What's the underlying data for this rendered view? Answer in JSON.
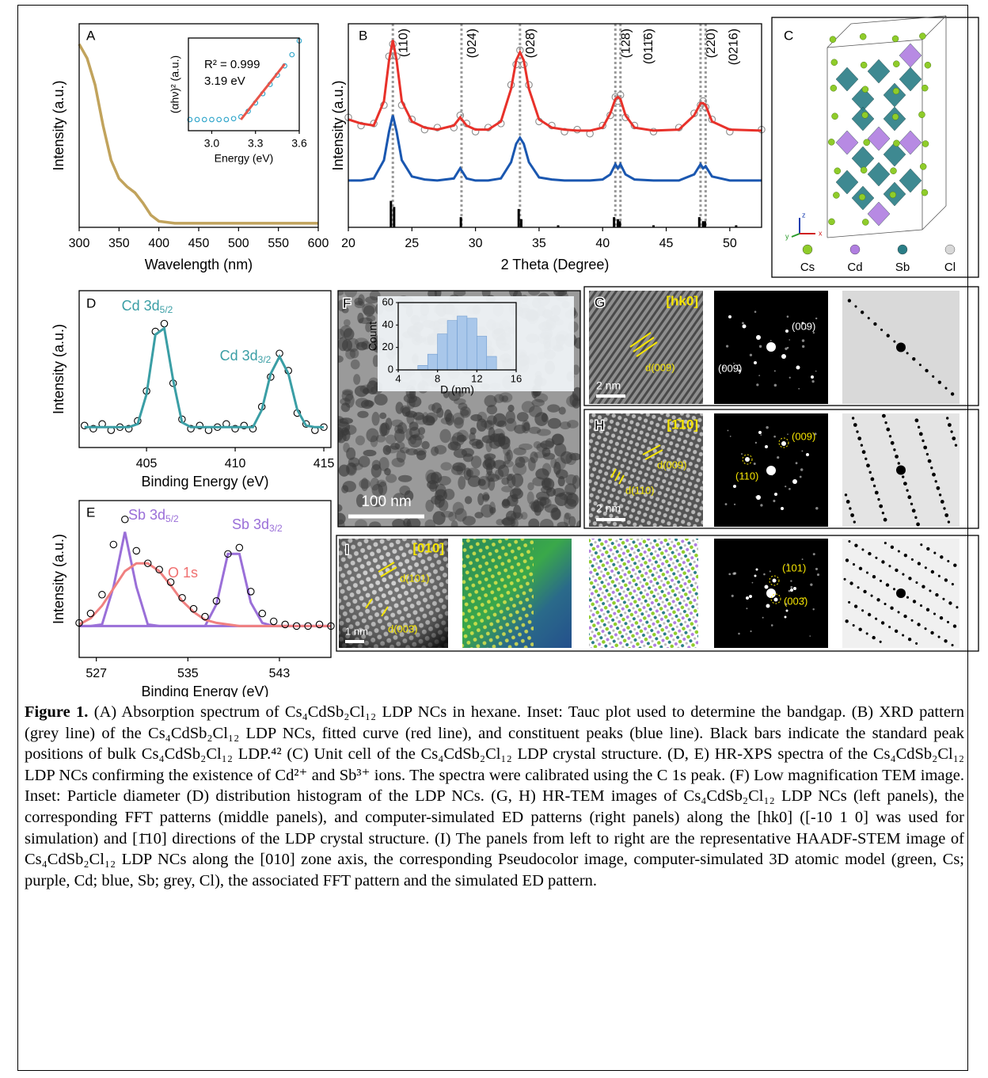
{
  "chart_data": [
    {
      "type": "line",
      "panel": "A",
      "xlabel": "Wavelength (nm)",
      "ylabel": "Intensity (a.u.)",
      "x": [
        300,
        310,
        320,
        330,
        340,
        350,
        360,
        370,
        380,
        390,
        400,
        420,
        450,
        500,
        550,
        600
      ],
      "values": [
        0.9,
        0.83,
        0.7,
        0.5,
        0.33,
        0.24,
        0.2,
        0.17,
        0.12,
        0.06,
        0.03,
        0.02,
        0.02,
        0.02,
        0.02,
        0.02
      ],
      "color": "#c1a35c",
      "xlim": [
        300,
        600
      ],
      "xticks": [
        300,
        350,
        400,
        450,
        500,
        550,
        600
      ],
      "ylim": [
        0,
        1
      ]
    },
    {
      "type": "line",
      "xlabel": "Energy (eV)",
      "ylabel": "(αhν)² (a.u.)",
      "annotations": [
        "R² = 0.999",
        "3.19 eV"
      ],
      "x": [
        2.85,
        2.9,
        2.95,
        3.0,
        3.05,
        3.1,
        3.15,
        3.2,
        3.25,
        3.3,
        3.35,
        3.4,
        3.45,
        3.5,
        3.55,
        3.6
      ],
      "series": [
        {
          "color": "#2aa3c9",
          "style": "markers",
          "values": [
            0.12,
            0.12,
            0.12,
            0.12,
            0.12,
            0.12,
            0.13,
            0.15,
            0.21,
            0.3,
            0.4,
            0.5,
            0.6,
            0.7,
            0.82,
            0.97
          ]
        },
        {
          "color": "#e8554a",
          "style": "line",
          "values": [
            null,
            null,
            null,
            null,
            null,
            null,
            null,
            0.12,
            0.22,
            0.32,
            0.42,
            0.52,
            0.62,
            0.72,
            null,
            null
          ]
        }
      ],
      "xlim": [
        2.84,
        3.6
      ],
      "xticks": [
        {
          "value": 3,
          "label": "3.0"
        },
        3.3,
        3.6
      ],
      "ylim": [
        0,
        1
      ]
    },
    {
      "type": "line",
      "panel": "B",
      "xlabel": "2 Theta (Degree)",
      "ylabel": "Intensity (a.u.)",
      "x": [
        20,
        21,
        22,
        22.8,
        23.2,
        23.5,
        23.8,
        24.2,
        25,
        26,
        27,
        28.3,
        28.8,
        29.3,
        30,
        31,
        32,
        32.8,
        33.2,
        33.5,
        33.8,
        34.2,
        35,
        36,
        37,
        38,
        39,
        40,
        40.6,
        41.0,
        41.2,
        41.4,
        41.8,
        42.5,
        44,
        46,
        47.2,
        47.7,
        47.9,
        48.1,
        48.6,
        50,
        52.5
      ],
      "series": [
        {
          "color": "#8c8c8c",
          "style": "markers",
          "values": [
            0.54,
            0.5,
            0.51,
            0.6,
            0.84,
            0.9,
            0.84,
            0.6,
            0.53,
            0.48,
            0.49,
            0.49,
            0.55,
            0.51,
            0.47,
            0.49,
            0.51,
            0.7,
            0.8,
            0.87,
            0.8,
            0.7,
            0.52,
            0.5,
            0.47,
            0.48,
            0.46,
            0.5,
            0.55,
            0.64,
            0.62,
            0.65,
            0.54,
            0.5,
            0.47,
            0.49,
            0.56,
            0.6,
            0.62,
            0.59,
            0.53,
            0.47,
            0.48
          ]
        },
        {
          "color": "#e8312a",
          "style": "line",
          "values": [
            0.53,
            0.51,
            0.5,
            0.62,
            0.82,
            0.92,
            0.82,
            0.62,
            0.52,
            0.49,
            0.48,
            0.5,
            0.54,
            0.5,
            0.48,
            0.48,
            0.52,
            0.68,
            0.82,
            0.86,
            0.82,
            0.68,
            0.53,
            0.49,
            0.48,
            0.475,
            0.475,
            0.49,
            0.56,
            0.63,
            0.64,
            0.63,
            0.55,
            0.49,
            0.475,
            0.48,
            0.55,
            0.61,
            0.61,
            0.6,
            0.52,
            0.48,
            0.475
          ]
        },
        {
          "color": "#1a57b0",
          "style": "line",
          "values": [
            0.23,
            0.23,
            0.24,
            0.33,
            0.47,
            0.55,
            0.47,
            0.33,
            0.25,
            0.235,
            0.23,
            0.24,
            0.29,
            0.24,
            0.23,
            0.23,
            0.24,
            0.32,
            0.41,
            0.44,
            0.41,
            0.32,
            0.245,
            0.235,
            0.23,
            0.23,
            0.23,
            0.235,
            0.26,
            0.31,
            0.29,
            0.31,
            0.26,
            0.235,
            0.23,
            0.23,
            0.26,
            0.31,
            0.29,
            0.3,
            0.25,
            0.23,
            0.23
          ]
        }
      ],
      "bars": {
        "color": "#000000",
        "x": [
          23.35,
          23.6,
          28.85,
          33.4,
          33.6,
          36.5,
          40.9,
          41.2,
          41.35,
          44,
          47.6,
          47.9,
          48.05,
          50.5
        ],
        "values": [
          0.13,
          0.1,
          0.05,
          0.09,
          0.04,
          0.01,
          0.05,
          0.04,
          0.03,
          0.01,
          0.05,
          0.03,
          0.03,
          0.01
        ]
      },
      "peak_positions": [
        23.5,
        28.9,
        33.5,
        41.0,
        41.4,
        47.7,
        48.1
      ],
      "peak_labels": [
        "(110)",
        "(024)",
        "(028̄)",
        "(128)",
        "(011̄6)",
        "(220)",
        "(0216)"
      ],
      "xlim": [
        20,
        52.5
      ],
      "xticks": [
        20,
        25,
        30,
        35,
        40,
        45,
        50
      ],
      "ylim": [
        0,
        1
      ]
    },
    {
      "type": "line",
      "panel": "D",
      "xlabel": "Binding Energy (eV)",
      "ylabel": "Intensity (a.u.)",
      "x": [
        401.5,
        402,
        402.5,
        403,
        403.5,
        404,
        404.5,
        405,
        405.5,
        406,
        406.5,
        407,
        407.5,
        408,
        408.5,
        409,
        409.5,
        410,
        410.5,
        411,
        411.5,
        412,
        412.5,
        413,
        413.5,
        414,
        414.5,
        415
      ],
      "series": [
        {
          "color": "#000000",
          "style": "markers",
          "values": [
            0.14,
            0.12,
            0.15,
            0.11,
            0.13,
            0.12,
            0.17,
            0.36,
            0.74,
            0.79,
            0.41,
            0.18,
            0.12,
            0.14,
            0.11,
            0.13,
            0.15,
            0.12,
            0.14,
            0.12,
            0.26,
            0.45,
            0.6,
            0.49,
            0.22,
            0.15,
            0.11,
            0.13
          ]
        },
        {
          "color": "#3a9ea5",
          "style": "line",
          "values": [
            0.13,
            0.13,
            0.13,
            0.13,
            0.13,
            0.13,
            0.15,
            0.34,
            0.72,
            0.76,
            0.43,
            0.16,
            0.13,
            0.13,
            0.13,
            0.13,
            0.13,
            0.13,
            0.13,
            0.13,
            0.24,
            0.47,
            0.58,
            0.47,
            0.24,
            0.14,
            0.13,
            0.13
          ]
        }
      ],
      "annotations": [
        {
          "text": "Cd 3d",
          "sub": "5/2",
          "color": "#3a9ea5"
        },
        {
          "text": "Cd 3d",
          "sub": "3/2",
          "color": "#3a9ea5"
        }
      ],
      "xlim": [
        401.2,
        415.4
      ],
      "xticks": [
        405,
        410,
        415
      ],
      "ylim": [
        0,
        1
      ]
    },
    {
      "type": "line",
      "panel": "E",
      "xlabel": "Binding Energy (eV)",
      "ylabel": "Intensity (a.u.)",
      "x": [
        525.5,
        526.5,
        527.5,
        528.5,
        529.5,
        530.5,
        531.5,
        532.5,
        533.5,
        534.5,
        535.5,
        536.5,
        537.5,
        538.5,
        539.5,
        540.5,
        541.5,
        542.5,
        543.5,
        544.5,
        545.5,
        546.5,
        547.5
      ],
      "series": [
        {
          "color": "#9a6fd8",
          "style": "line",
          "values": [
            0.2,
            0.2,
            0.21,
            0.45,
            0.8,
            0.45,
            0.21,
            0.2,
            0.2,
            0.2,
            0.2,
            0.2,
            0.2,
            0.2,
            0.2,
            0.2,
            0.2,
            0.2,
            0.2,
            0.2,
            0.2,
            0.2,
            0.2
          ]
        },
        {
          "color": "#9a6fd8",
          "style": "line",
          "values": [
            0.2,
            0.2,
            0.2,
            0.2,
            0.2,
            0.2,
            0.2,
            0.2,
            0.2,
            0.2,
            0.2,
            0.2,
            0.34,
            0.66,
            0.66,
            0.35,
            0.22,
            0.2,
            0.2,
            0.2,
            0.2,
            0.2,
            0.2
          ]
        },
        {
          "color": "#f08080",
          "style": "line",
          "values": [
            0.21,
            0.25,
            0.33,
            0.44,
            0.55,
            0.6,
            0.6,
            0.55,
            0.46,
            0.36,
            0.29,
            0.24,
            0.22,
            0.21,
            0.2,
            0.2,
            0.2,
            0.2,
            0.2,
            0.2,
            0.2,
            0.2,
            0.2
          ]
        },
        {
          "color": "#000000",
          "style": "markers",
          "values": [
            0.22,
            0.28,
            0.4,
            0.72,
            0.88,
            0.68,
            0.6,
            0.56,
            0.48,
            0.38,
            0.31,
            0.26,
            0.36,
            0.66,
            0.7,
            0.42,
            0.28,
            0.23,
            0.21,
            0.2,
            0.2,
            0.21,
            0.2
          ]
        }
      ],
      "annotations": [
        {
          "text": "Sb 3d",
          "sub": "5/2",
          "color": "#9a6fd8"
        },
        {
          "text": "O 1s",
          "color": "#f07070"
        },
        {
          "text": "Sb 3d",
          "sub": "3/2",
          "color": "#9a6fd8"
        }
      ],
      "xlim": [
        525.5,
        547.5
      ],
      "xticks": [
        527,
        535,
        543
      ],
      "ylim": [
        0,
        1
      ]
    },
    {
      "type": "histogram",
      "xlabel": "D (nm)",
      "ylabel": "Count",
      "bins": [
        6,
        7,
        8,
        9,
        10,
        11,
        12,
        13,
        14
      ],
      "values": [
        4,
        14,
        32,
        44,
        48,
        46,
        30,
        12
      ],
      "color": "#a9c7ea",
      "xlim": [
        4,
        16
      ],
      "xticks": [
        4,
        8,
        12,
        16
      ],
      "ylim": [
        0,
        60
      ],
      "yticks": [
        0,
        20,
        40,
        60
      ]
    }
  ],
  "structure": {
    "label": "C",
    "axes": [
      "z",
      "y",
      "x"
    ],
    "legend": [
      "Cs",
      "Cd",
      "Sb",
      "Cl"
    ],
    "legend_colors": [
      "#8fcc2a",
      "#b07ee0",
      "#2a7d86",
      "#d8d8d8"
    ]
  },
  "images": {
    "F": {
      "label": "F",
      "scale_bar": "100 nm"
    },
    "G": {
      "label": "G",
      "zone": "[hk0]",
      "d_spacings": [
        "d(009)"
      ],
      "fft_spots": [
        "(009)",
        "(009̄)"
      ],
      "scale_bar": "2 nm"
    },
    "H": {
      "label": "H",
      "zone": "[1̄10]",
      "d_spacings": [
        "d(009)",
        "d(110)"
      ],
      "fft_spots": [
        "(009)",
        "(110)"
      ],
      "scale_bar": "2 nm"
    },
    "I": {
      "label": "I",
      "zone": "[010]",
      "d_spacings": [
        "d(101)",
        "d(003̄)"
      ],
      "fft_spots": [
        "(101)",
        "(003̄)"
      ],
      "scale_bar": "1 nm"
    }
  },
  "caption": {
    "label": "Figure 1.",
    "text": " (A) Absorption spectrum of Cs₄CdSb₂Cl₁₂ LDP NCs in hexane. Inset: Tauc plot used to determine the bandgap. (B) XRD pattern (grey line) of the Cs₄CdSb₂Cl₁₂ LDP NCs, fitted curve (red line), and constituent peaks (blue line). Black bars indicate the standard peak positions of bulk Cs₄CdSb₂Cl₁₂ LDP.⁴² (C) Unit cell of the Cs₄CdSb₂Cl₁₂ LDP crystal structure.  (D, E) HR-XPS spectra of the Cs₄CdSb₂Cl₁₂ LDP NCs confirming the existence of Cd²⁺ and Sb³⁺ ions. The spectra were calibrated using the C 1s peak. (F) Low magnification TEM image. Inset: Particle diameter (D) distribution histogram of the LDP NCs. (G, H) HR-TEM images of Cs₄CdSb₂Cl₁₂ LDP NCs (left panels), the corresponding FFT patterns (middle panels), and computer-simulated ED patterns (right panels) along the [hk0] ([-10 1 0] was used for simulation) and [1̄10] directions of the LDP crystal structure. (I) The panels from left to right are the representative HAADF-STEM image of Cs₄CdSb₂Cl₁₂ LDP NCs along the [010] zone axis, the corresponding Pseudocolor image, computer-simulated 3D atomic model (green, Cs; purple, Cd; blue, Sb; grey, Cl), the associated FFT pattern and the simulated ED pattern."
  }
}
